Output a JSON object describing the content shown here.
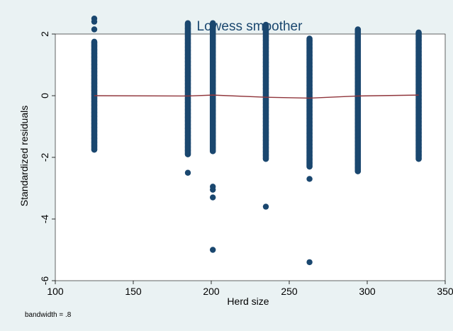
{
  "chart_data": {
    "type": "scatter",
    "title": "Lowess smoother",
    "xlabel": "Herd size",
    "ylabel": "Standardized residuals",
    "note": "bandwidth = .8",
    "xlim": [
      100,
      350
    ],
    "ylim": [
      -6,
      2
    ],
    "x_ticks": [
      100,
      150,
      200,
      250,
      300,
      350
    ],
    "y_ticks": [
      2,
      0,
      -2,
      -4,
      -6
    ],
    "x_tick_labels": [
      "100",
      "150",
      "200",
      "250",
      "300",
      "350"
    ],
    "y_tick_labels": [
      "2",
      "0",
      "-2",
      "-4",
      "-6"
    ],
    "grid": false,
    "colors": {
      "points": "#1a476f",
      "line": "#90353b",
      "background": "#eaf2f3",
      "plot_background": "#ffffff"
    },
    "scatter_columns": [
      {
        "x": 125,
        "dense_range": [
          -1.75,
          1.75
        ],
        "extra_y": [
          2.4,
          2.5,
          2.15
        ]
      },
      {
        "x": 185,
        "dense_range": [
          -1.9,
          2.35
        ],
        "extra_y": [
          -2.5
        ]
      },
      {
        "x": 201,
        "dense_range": [
          -1.8,
          2.35
        ],
        "extra_y": [
          -2.95,
          -3.05,
          -3.3,
          -5.0
        ]
      },
      {
        "x": 235,
        "dense_range": [
          -2.05,
          2.3
        ],
        "extra_y": [
          -3.6
        ]
      },
      {
        "x": 263,
        "dense_range": [
          -2.3,
          1.85
        ],
        "extra_y": [
          -2.7,
          -5.4
        ]
      },
      {
        "x": 294,
        "dense_range": [
          -2.45,
          2.15
        ],
        "extra_y": []
      },
      {
        "x": 333,
        "dense_range": [
          -2.05,
          2.05
        ],
        "extra_y": []
      }
    ],
    "series": [
      {
        "type": "line",
        "x": [
          125,
          185,
          201,
          235,
          263,
          294,
          333
        ],
        "y": [
          0.0,
          -0.01,
          0.02,
          -0.05,
          -0.08,
          -0.01,
          0.02
        ]
      }
    ]
  }
}
